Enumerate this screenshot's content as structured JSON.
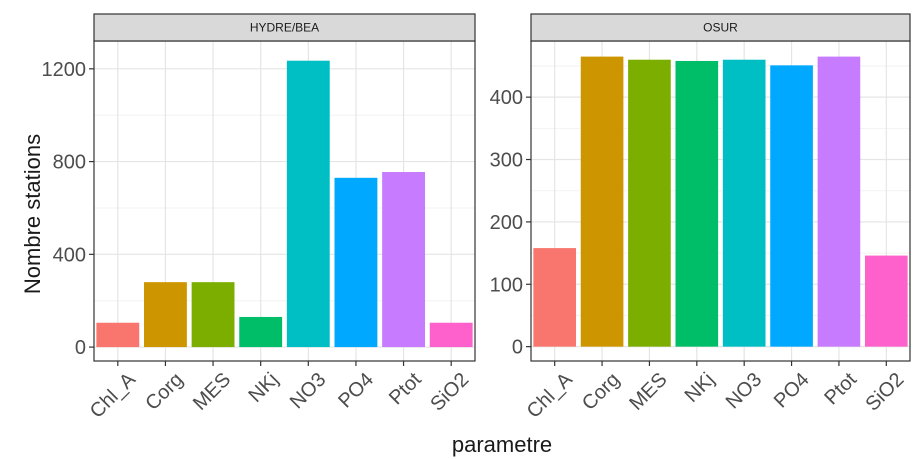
{
  "chart_data": {
    "type": "bar",
    "xlabel": "parametre",
    "ylabel": "Nombre stations",
    "categories": [
      "Chl_A",
      "Corg",
      "MES",
      "NKj",
      "NO3",
      "PO4",
      "Ptot",
      "SiO2"
    ],
    "colors": [
      "#F8766D",
      "#CD9600",
      "#7CAE00",
      "#00BE67",
      "#00BFC4",
      "#00A9FF",
      "#C77CFF",
      "#FF61CC"
    ],
    "panel_background": "#ffffff",
    "strip_background": "#d9d9d9",
    "grid": true,
    "legend": "none",
    "facets": [
      {
        "name": "HYDRE/BEA",
        "values": [
          105,
          280,
          280,
          130,
          1235,
          730,
          755,
          105
        ],
        "ylim": [
          -60,
          1320
        ],
        "yticks": [
          0,
          400,
          800,
          1200
        ]
      },
      {
        "name": "OSUR",
        "values": [
          158,
          465,
          460,
          458,
          460,
          451,
          465,
          146
        ],
        "ylim": [
          -23,
          490
        ],
        "yticks": [
          0,
          100,
          200,
          300,
          400
        ]
      }
    ]
  }
}
